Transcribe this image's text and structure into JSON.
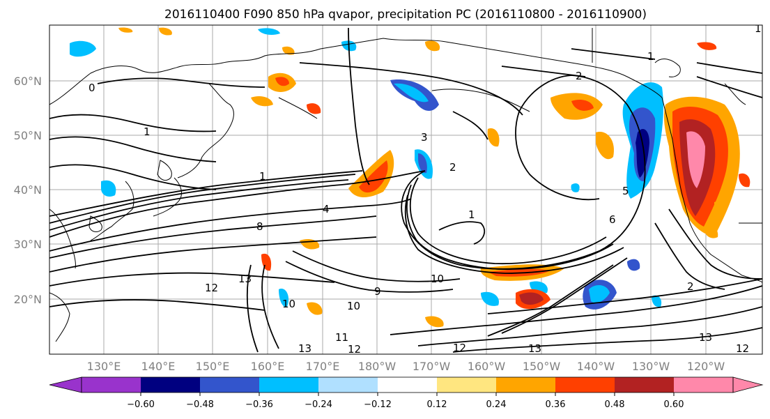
{
  "title": "2016110400 F090 850 hPa qvapor, precipitation PC (2016110800 - 2016110900)",
  "lon_labels": [
    "130°E",
    "140°E",
    "150°E",
    "160°E",
    "170°E",
    "180°W",
    "170°W",
    "160°W",
    "150°W",
    "140°W",
    "130°W",
    "120°W"
  ],
  "lat_labels": [
    "60°N",
    "50°N",
    "40°N",
    "30°N",
    "20°N"
  ],
  "colorbar": {
    "tick_labels": [
      "−0.60",
      "−0.48",
      "−0.36",
      "−0.24",
      "−0.12",
      "0.12",
      "0.24",
      "0.36",
      "0.48",
      "0.60"
    ],
    "colors": [
      "#9933cc",
      "#000080",
      "#3355cc",
      "#00bfff",
      "#b0e0ff",
      "#ffffff",
      "#ffe680",
      "#ffa500",
      "#ff4000",
      "#b22222",
      "#ff88aa",
      "#ff88aa"
    ]
  },
  "contour_labels": [
    "0",
    "1",
    "1",
    "1",
    "2",
    "2",
    "3",
    "4",
    "5",
    "6",
    "8",
    "9",
    "10",
    "10",
    "10",
    "11",
    "12",
    "12",
    "12",
    "13",
    "13",
    "13",
    "13",
    "12",
    "2",
    "1",
    "1"
  ],
  "palette": {
    "neg_dark": "#000080",
    "neg_mid": "#3355cc",
    "neg_light": "#00bfff",
    "neg_pale": "#b0e0ff",
    "pos_pale": "#ffe680",
    "pos_mid": "#ffa500",
    "pos_strong": "#ff4000",
    "pos_dark": "#b22222",
    "pos_max": "#ff88aa"
  }
}
